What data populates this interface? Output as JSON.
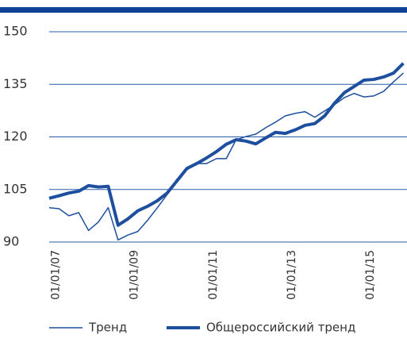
{
  "chart_data": {
    "type": "line",
    "categories": [
      null,
      "01/01/07",
      null,
      null,
      null,
      null,
      null,
      null,
      null,
      "01/01/09",
      null,
      null,
      null,
      null,
      null,
      null,
      null,
      "01/01/11",
      null,
      null,
      null,
      null,
      null,
      null,
      null,
      "01/01/13",
      null,
      null,
      null,
      null,
      null,
      null,
      null,
      "01/01/15",
      null,
      null,
      null
    ],
    "series": [
      {
        "name": "Тренд",
        "color": "#1d4f9e",
        "line_width": 1.5,
        "values": [
          99.8,
          99.5,
          97.5,
          98.4,
          93.3,
          95.7,
          99.8,
          90.6,
          92,
          93,
          96.2,
          99.8,
          103.6,
          108,
          110.6,
          112.4,
          112.4,
          113.8,
          113.8,
          119.2,
          120.1,
          120.8,
          122.6,
          124.2,
          126,
          126.7,
          127.2,
          125.6,
          127.4,
          129.2,
          131.2,
          132.4,
          131.4,
          131.7,
          133,
          135.7,
          138.2
        ]
      },
      {
        "name": "Общероссийский тренд",
        "color": "#1d4f9e",
        "line_width": 4,
        "values": [
          102.5,
          103.2,
          104,
          104.5,
          106.1,
          105.7,
          105.9,
          94.8,
          96.6,
          98.9,
          100.2,
          101.8,
          104,
          107.5,
          111,
          112.4,
          114,
          115.8,
          117.9,
          119.2,
          118.8,
          118,
          119.7,
          121.3,
          121,
          122,
          123.3,
          123.8,
          126,
          129.6,
          132.6,
          134.4,
          136.2,
          136.4,
          137.1,
          138.2,
          141
        ]
      }
    ],
    "ylim": [
      90,
      150
    ],
    "yticks": [
      90,
      105,
      120,
      135,
      150
    ],
    "grid": true,
    "legend": "bottom"
  }
}
